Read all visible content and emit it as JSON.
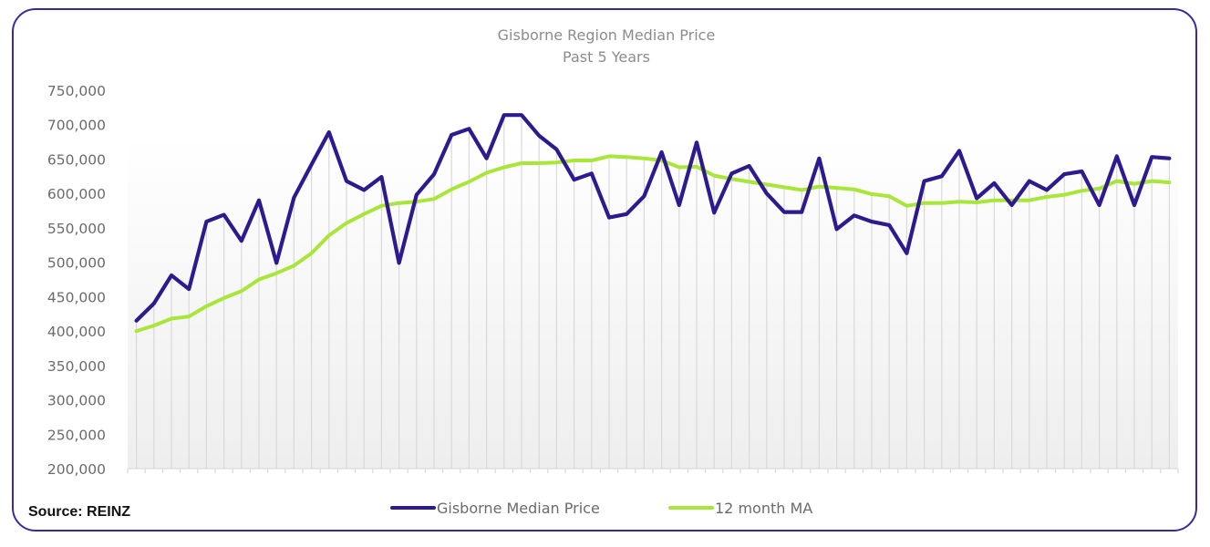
{
  "chart_data": {
    "type": "line",
    "title": "Gisborne Region Median Price",
    "subtitle": "Past 5 Years",
    "xlabel": "",
    "ylabel": "",
    "ylim": [
      200000,
      750000
    ],
    "yticks": [
      "750,000",
      "700,000",
      "650,000",
      "600,000",
      "550,000",
      "500,000",
      "450,000",
      "400,000",
      "350,000",
      "300,000",
      "250,000",
      "200,000"
    ],
    "ytick_values": [
      750000,
      700000,
      650000,
      600000,
      550000,
      500000,
      450000,
      400000,
      350000,
      300000,
      250000,
      200000
    ],
    "grid": "vertical",
    "legend_position": "bottom",
    "n_points": 60,
    "series": [
      {
        "name": "Gisborne Median Price",
        "color": "#2e1a8e",
        "values": [
          415000,
          440000,
          481000,
          461000,
          559000,
          569000,
          531000,
          590000,
          499000,
          594000,
          642000,
          689000,
          618000,
          605000,
          624000,
          499000,
          598000,
          628000,
          685000,
          694000,
          651000,
          714000,
          714000,
          684000,
          664000,
          620000,
          629000,
          565000,
          570000,
          596000,
          660000,
          583000,
          674000,
          572000,
          629000,
          640000,
          600000,
          573000,
          573000,
          651000,
          548000,
          568000,
          559000,
          554000,
          513000,
          618000,
          625000,
          662000,
          593000,
          615000,
          583000,
          618000,
          605000,
          628000,
          632000,
          583000,
          654000,
          583000,
          653000,
          651000
        ]
      },
      {
        "name": "12 month MA",
        "color": "#a8e63a",
        "values": [
          400000,
          408000,
          418000,
          421000,
          436000,
          448000,
          458000,
          475000,
          484000,
          495000,
          513000,
          539000,
          557000,
          570000,
          582000,
          586000,
          588000,
          592000,
          606000,
          617000,
          630000,
          638000,
          644000,
          644000,
          645000,
          648000,
          648000,
          654000,
          653000,
          651000,
          648000,
          638000,
          639000,
          626000,
          621000,
          617000,
          613000,
          609000,
          605000,
          610000,
          608000,
          606000,
          599000,
          596000,
          582000,
          586000,
          586000,
          588000,
          587000,
          590000,
          590000,
          590000,
          595000,
          598000,
          604000,
          607000,
          618000,
          614000,
          618000,
          616000
        ]
      }
    ]
  },
  "footer": {
    "source": "Source: REINZ"
  }
}
